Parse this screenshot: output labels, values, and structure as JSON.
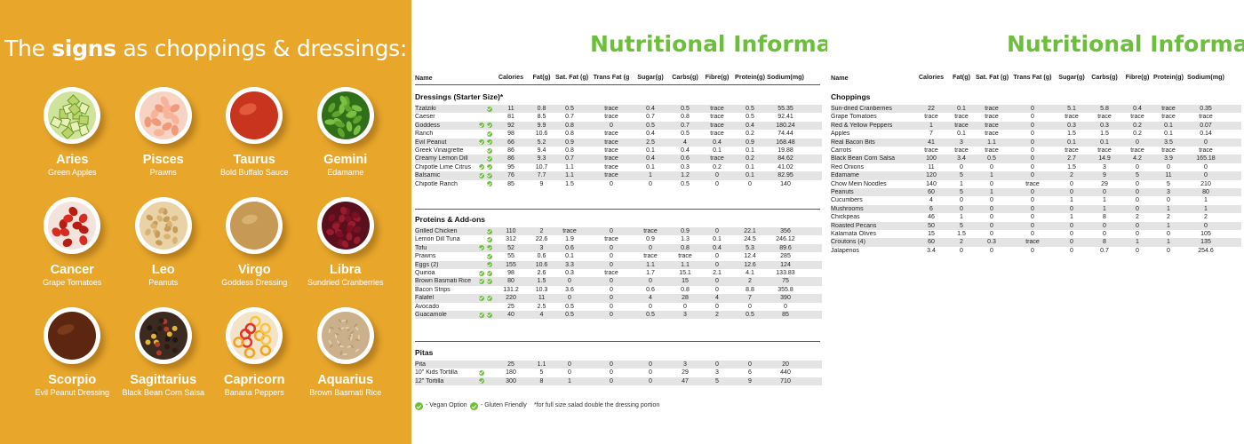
{
  "left": {
    "title_pre": "The ",
    "title_bold": "signs",
    "title_post": " as choppings & dressings:",
    "signs": [
      {
        "name": "Aries",
        "item": "Green Apples",
        "food": "apple"
      },
      {
        "name": "Pisces",
        "item": "Prawns",
        "food": "prawns"
      },
      {
        "name": "Taurus",
        "item": "Bold Buffalo Sauce",
        "food": "buffalo"
      },
      {
        "name": "Gemini",
        "item": "Edamame",
        "food": "edamame"
      },
      {
        "name": "Cancer",
        "item": "Grape Tomatoes",
        "food": "tomatoes"
      },
      {
        "name": "Leo",
        "item": "Peanuts",
        "food": "peanuts"
      },
      {
        "name": "Virgo",
        "item": "Goddess Dressing",
        "food": "goddess"
      },
      {
        "name": "Libra",
        "item": "Sundried Cranberries",
        "food": "cranberries"
      },
      {
        "name": "Scorpio",
        "item": "Evil Peanut Dressing",
        "food": "evil-peanut"
      },
      {
        "name": "Sagittarius",
        "item": "Black Bean Corn Salsa",
        "food": "salsa"
      },
      {
        "name": "Capricorn",
        "item": "Banana Peppers",
        "food": "peppers"
      },
      {
        "name": "Aquarius",
        "item": "Brown Basmati Rice",
        "food": "rice"
      }
    ]
  },
  "sheet1": {
    "title": "Nutritional Information",
    "columns": [
      "Name",
      "Calories",
      "Fat(g)",
      "Sat. Fat (g)",
      "Trans Fat (g",
      "Sugar(g)",
      "Carbs(g)",
      "Fibre(g)",
      "Protein(g)",
      "Sodium(mg)"
    ],
    "sections": [
      {
        "title": "Dressings (Starter Size)*",
        "rows": [
          {
            "n": "Tzatziki",
            "v": 0,
            "g": 1,
            "d": [
              "11",
              "0.8",
              "0.5",
              "trace",
              "0.4",
              "0.5",
              "trace",
              "0.5",
              "55.35"
            ]
          },
          {
            "n": "Caeser",
            "v": 0,
            "g": 0,
            "d": [
              "81",
              "8.5",
              "0.7",
              "trace",
              "0.7",
              "0.8",
              "trace",
              "0.5",
              "92.41"
            ]
          },
          {
            "n": "Goddess",
            "v": 1,
            "g": 1,
            "d": [
              "92",
              "9.9",
              "0.8",
              "0",
              "0.5",
              "0.7",
              "trace",
              "0.4",
              "180.24"
            ]
          },
          {
            "n": "Ranch",
            "v": 0,
            "g": 1,
            "d": [
              "98",
              "10.6",
              "0.8",
              "trace",
              "0.4",
              "0.5",
              "trace",
              "0.2",
              "74.44"
            ]
          },
          {
            "n": "Evil Peanut",
            "v": 1,
            "g": 1,
            "d": [
              "66",
              "5.2",
              "0.9",
              "trace",
              "2.5",
              "4",
              "0.4",
              "0.9",
              "168.48"
            ]
          },
          {
            "n": "Greek Vinaigrette",
            "v": 0,
            "g": 1,
            "d": [
              "86",
              "9.4",
              "0.8",
              "trace",
              "0.1",
              "0.4",
              "0.1",
              "0.1",
              "19.88"
            ]
          },
          {
            "n": "Creamy Lemon Dill",
            "v": 0,
            "g": 1,
            "d": [
              "86",
              "9.3",
              "0.7",
              "trace",
              "0.4",
              "0.6",
              "trace",
              "0.2",
              "84.62"
            ]
          },
          {
            "n": "Chipotle Lime Citrus",
            "v": 1,
            "g": 1,
            "d": [
              "95",
              "10.7",
              "1.1",
              "trace",
              "0.1",
              "0.3",
              "0.2",
              "0.1",
              "41.02"
            ]
          },
          {
            "n": "Balsamic",
            "v": 1,
            "g": 1,
            "d": [
              "76",
              "7.7",
              "1.1",
              "trace",
              "1",
              "1.2",
              "0",
              "0.1",
              "82.95"
            ]
          },
          {
            "n": "Chipotle Ranch",
            "v": 0,
            "g": 1,
            "d": [
              "85",
              "9",
              "1.5",
              "0",
              "0",
              "0.5",
              "0",
              "0",
              "140"
            ]
          }
        ]
      },
      {
        "title": "Proteins & Add-ons",
        "rows": [
          {
            "n": "Grilled Chicken",
            "v": 0,
            "g": 1,
            "d": [
              "110",
              "2",
              "trace",
              "0",
              "trace",
              "0.9",
              "0",
              "22.1",
              "356"
            ]
          },
          {
            "n": "Lemon Dill Tuna",
            "v": 0,
            "g": 1,
            "d": [
              "312",
              "22.6",
              "1.9",
              "trace",
              "0.9",
              "1.3",
              "0.1",
              "24.5",
              "246.12"
            ]
          },
          {
            "n": "Tofu",
            "v": 1,
            "g": 1,
            "d": [
              "52",
              "3",
              "0.6",
              "0",
              "0",
              "0.8",
              "0.4",
              "5.3",
              "89.6"
            ]
          },
          {
            "n": "Prawns",
            "v": 0,
            "g": 1,
            "d": [
              "55",
              "0.6",
              "0.1",
              "0",
              "trace",
              "trace",
              "0",
              "12.4",
              "285"
            ]
          },
          {
            "n": "Eggs (2)",
            "v": 0,
            "g": 1,
            "d": [
              "155",
              "10.6",
              "3.3",
              "0",
              "1.1",
              "1.1",
              "0",
              "12.6",
              "124"
            ]
          },
          {
            "n": "Quinoa",
            "v": 1,
            "g": 1,
            "d": [
              "98",
              "2.6",
              "0.3",
              "trace",
              "1.7",
              "15.1",
              "2.1",
              "4.1",
              "133.83"
            ]
          },
          {
            "n": "Brown Basmati Rice",
            "v": 1,
            "g": 1,
            "d": [
              "80",
              "1.5",
              "0",
              "0",
              "0",
              "15",
              "0",
              "2",
              "75"
            ]
          },
          {
            "n": "Bacon Strips",
            "v": 0,
            "g": 0,
            "d": [
              "131.2",
              "10.3",
              "3.6",
              "0",
              "0.6",
              "0.8",
              "0",
              "8.8",
              "355.8"
            ]
          },
          {
            "n": "Falafel",
            "v": 1,
            "g": 1,
            "d": [
              "220",
              "11",
              "0",
              "0",
              "4",
              "28",
              "4",
              "7",
              "390"
            ]
          },
          {
            "n": "Avocado",
            "v": 0,
            "g": 0,
            "d": [
              "25",
              "2.5",
              "0.5",
              "0",
              "0",
              "0",
              "0",
              "0",
              "0"
            ]
          },
          {
            "n": "Guacamole",
            "v": 1,
            "g": 1,
            "d": [
              "40",
              "4",
              "0.5",
              "0",
              "0.5",
              "3",
              "2",
              "0.5",
              "85"
            ]
          }
        ]
      },
      {
        "title": "Pitas",
        "rows": [
          {
            "n": "Pita",
            "v": 0,
            "g": 0,
            "d": [
              "25",
              "1.1",
              "0",
              "0",
              "0",
              "3",
              "0",
              "0",
              "20"
            ]
          },
          {
            "n": "10\" Kids Tortilla",
            "v": 1,
            "g": 0,
            "d": [
              "180",
              "5",
              "0",
              "0",
              "0",
              "29",
              "3",
              "6",
              "440"
            ]
          },
          {
            "n": "12\" Tortilla",
            "v": 1,
            "g": 0,
            "d": [
              "300",
              "8",
              "1",
              "0",
              "0",
              "47",
              "5",
              "9",
              "710"
            ]
          }
        ]
      }
    ],
    "legend": {
      "vegan": "- Vegan Option",
      "gluten": "- Gluten Friendly",
      "note": "*for full size salad double the dressing portion"
    }
  },
  "sheet2": {
    "title": "Nutritional Information",
    "columns": [
      "Name",
      "Calories",
      "Fat(g)",
      "Sat. Fat (g)",
      "Trans Fat (g)",
      "Sugar(g)",
      "Carbs(g)",
      "Fibre(g)",
      "Protein(g)",
      "Sodium(mg)"
    ],
    "section_title": "Choppings",
    "rows": [
      {
        "n": "Sun-dried Cranberries",
        "d": [
          "22",
          "0.1",
          "trace",
          "0",
          "5.1",
          "5.8",
          "0.4",
          "trace",
          "0.35"
        ]
      },
      {
        "n": "Grape Tomatoes",
        "d": [
          "trace",
          "trace",
          "trace",
          "0",
          "trace",
          "trace",
          "trace",
          "trace",
          "trace"
        ]
      },
      {
        "n": "Red & Yellow Peppers",
        "d": [
          "1",
          "trace",
          "trace",
          "0",
          "0.3",
          "0.3",
          "0.2",
          "0.1",
          "0.07"
        ]
      },
      {
        "n": "Apples",
        "d": [
          "7",
          "0.1",
          "trace",
          "0",
          "1.5",
          "1.5",
          "0.2",
          "0.1",
          "0.14"
        ]
      },
      {
        "n": "Real Bacon Bits",
        "d": [
          "41",
          "3",
          "1.1",
          "0",
          "0.1",
          "0.1",
          "0",
          "3.5",
          "0"
        ]
      },
      {
        "n": "Carrots",
        "d": [
          "trace",
          "trace",
          "trace",
          "0",
          "trace",
          "trace",
          "trace",
          "trace",
          "trace"
        ]
      },
      {
        "n": "Black Bean Corn Salsa",
        "d": [
          "100",
          "3.4",
          "0.5",
          "0",
          "2.7",
          "14.9",
          "4.2",
          "3.9",
          "165.18"
        ]
      },
      {
        "n": "Red Onions",
        "d": [
          "11",
          "0",
          "0",
          "0",
          "1.5",
          "3",
          "0",
          "0",
          "0"
        ]
      },
      {
        "n": "Edamame",
        "d": [
          "120",
          "5",
          "1",
          "0",
          "2",
          "9",
          "5",
          "11",
          "0"
        ]
      },
      {
        "n": "Chow Mein Noodles",
        "d": [
          "140",
          "1",
          "0",
          "trace",
          "0",
          "29",
          "0",
          "5",
          "210"
        ]
      },
      {
        "n": "Peanuts",
        "d": [
          "60",
          "5",
          "1",
          "0",
          "0",
          "0",
          "0",
          "3",
          "80"
        ]
      },
      {
        "n": "Cucumbers",
        "d": [
          "4",
          "0",
          "0",
          "0",
          "1",
          "1",
          "0",
          "0",
          "1"
        ]
      },
      {
        "n": "Mushrooms",
        "d": [
          "6",
          "0",
          "0",
          "0",
          "0",
          "1",
          "0",
          "1",
          "1"
        ]
      },
      {
        "n": "Chickpeas",
        "d": [
          "46",
          "1",
          "0",
          "0",
          "1",
          "8",
          "2",
          "2",
          "2"
        ]
      },
      {
        "n": "Roasted Pecans",
        "d": [
          "50",
          "5",
          "0",
          "0",
          "0",
          "0",
          "0",
          "1",
          "0"
        ]
      },
      {
        "n": "Kalamata Olives",
        "d": [
          "15",
          "1.5",
          "0",
          "0",
          "0",
          "0",
          "0",
          "0",
          "105"
        ]
      },
      {
        "n": "Croutons (4)",
        "d": [
          "60",
          "2",
          "0.3",
          "trace",
          "0",
          "8",
          "1",
          "1",
          "135"
        ]
      },
      {
        "n": "Jalapenos",
        "d": [
          "3.4",
          "0",
          "0",
          "0",
          "0",
          "0.7",
          "0",
          "0",
          "254.6"
        ]
      }
    ]
  },
  "colors": {
    "panel": "#e8a72b",
    "title_green": "#6cbf3a",
    "row_alt": "#e4e4e4"
  }
}
